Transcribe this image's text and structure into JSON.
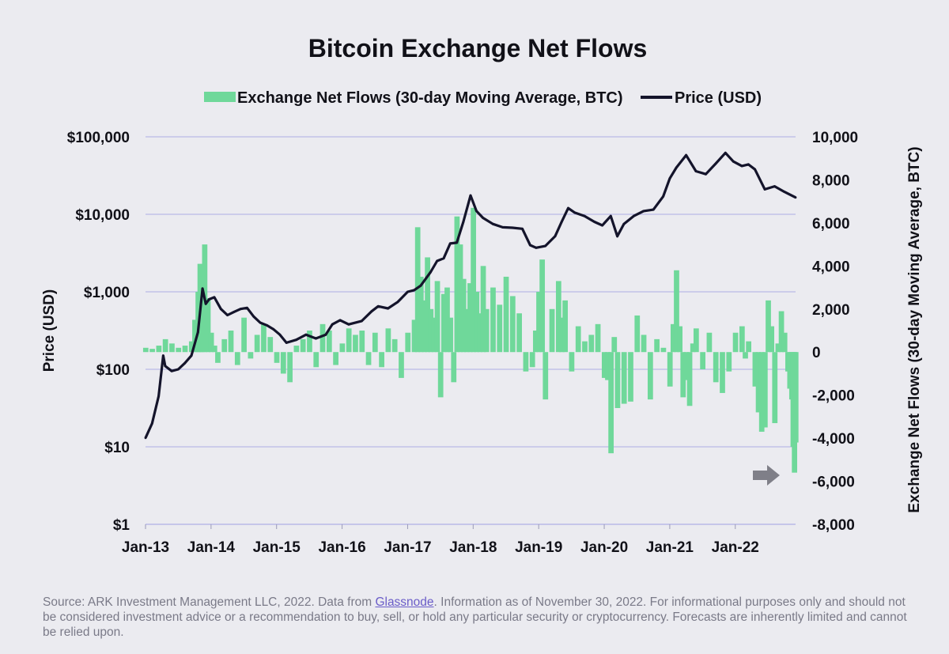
{
  "chart_data": {
    "type": "bar+line",
    "title": "Bitcoin Exchange Net Flows",
    "legend": [
      {
        "label": "Exchange Net Flows (30-day Moving Average, BTC)",
        "kind": "bar",
        "color": "#6fd89a"
      },
      {
        "label": "Price (USD)",
        "kind": "line",
        "color": "#14142b"
      }
    ],
    "legend_position": "top-center",
    "xlabel": "",
    "x_ticks": [
      "Jan-13",
      "Jan-14",
      "Jan-15",
      "Jan-16",
      "Jan-17",
      "Jan-18",
      "Jan-19",
      "Jan-20",
      "Jan-21",
      "Jan-22"
    ],
    "x_range": [
      2013.0,
      2022.92
    ],
    "left_axis": {
      "label": "Price (USD)",
      "scale": "log",
      "ylim": [
        1,
        100000
      ],
      "tick_values": [
        1,
        10,
        100,
        1000,
        10000,
        100000
      ],
      "tick_labels": [
        "$1",
        "$10",
        "$100",
        "$1,000",
        "$10,000",
        "$100,000"
      ]
    },
    "right_axis": {
      "label": "Exchange Net Flows (30-day Moving Average, BTC)",
      "scale": "linear",
      "ylim": [
        -8000,
        10000
      ],
      "tick_values": [
        -8000,
        -6000,
        -4000,
        -2000,
        0,
        2000,
        4000,
        6000,
        8000,
        10000
      ],
      "tick_labels": [
        "-8,000",
        "-6,000",
        "-4,000",
        "-2,000",
        "0",
        "2,000",
        "4,000",
        "6,000",
        "8,000",
        "10,000"
      ]
    },
    "price_series": {
      "name": "Price (USD)",
      "x": [
        2013.0,
        2013.1,
        2013.2,
        2013.27,
        2013.3,
        2013.4,
        2013.5,
        2013.6,
        2013.7,
        2013.8,
        2013.87,
        2013.92,
        2013.97,
        2014.05,
        2014.15,
        2014.25,
        2014.35,
        2014.45,
        2014.55,
        2014.65,
        2014.75,
        2014.85,
        2014.95,
        2015.05,
        2015.15,
        2015.3,
        2015.45,
        2015.6,
        2015.75,
        2015.85,
        2015.97,
        2016.1,
        2016.3,
        2016.45,
        2016.55,
        2016.7,
        2016.85,
        2017.0,
        2017.1,
        2017.2,
        2017.35,
        2017.45,
        2017.55,
        2017.65,
        2017.75,
        2017.85,
        2017.96,
        2018.05,
        2018.15,
        2018.3,
        2018.45,
        2018.6,
        2018.75,
        2018.87,
        2018.96,
        2019.1,
        2019.25,
        2019.35,
        2019.45,
        2019.55,
        2019.7,
        2019.85,
        2019.97,
        2020.1,
        2020.2,
        2020.3,
        2020.45,
        2020.6,
        2020.75,
        2020.9,
        2021.0,
        2021.1,
        2021.25,
        2021.4,
        2021.55,
        2021.7,
        2021.85,
        2021.97,
        2022.1,
        2022.2,
        2022.3,
        2022.45,
        2022.6,
        2022.75,
        2022.92
      ],
      "y": [
        13,
        20,
        45,
        150,
        110,
        95,
        100,
        120,
        150,
        300,
        1100,
        700,
        800,
        850,
        600,
        500,
        550,
        600,
        620,
        480,
        400,
        370,
        330,
        280,
        220,
        240,
        280,
        250,
        280,
        380,
        430,
        380,
        420,
        560,
        650,
        610,
        740,
        1000,
        1050,
        1200,
        1800,
        2500,
        2700,
        4200,
        4300,
        8000,
        17500,
        11000,
        9000,
        7500,
        6800,
        6700,
        6500,
        4000,
        3700,
        3900,
        5200,
        8000,
        12000,
        10500,
        9500,
        8000,
        7200,
        9500,
        5200,
        7500,
        9500,
        11000,
        11500,
        17000,
        29000,
        40000,
        58000,
        36000,
        33000,
        45000,
        62000,
        48000,
        42000,
        44000,
        38000,
        21000,
        23000,
        19500,
        16500
      ]
    },
    "flow_series": {
      "name": "Exchange Net Flows (30-day Moving Average, BTC)",
      "x": [
        2013.0,
        2013.1,
        2013.2,
        2013.3,
        2013.4,
        2013.5,
        2013.6,
        2013.7,
        2013.75,
        2013.8,
        2013.83,
        2013.86,
        2013.9,
        2013.95,
        2014.0,
        2014.05,
        2014.1,
        2014.2,
        2014.3,
        2014.4,
        2014.5,
        2014.6,
        2014.7,
        2014.8,
        2014.9,
        2015.0,
        2015.1,
        2015.2,
        2015.3,
        2015.4,
        2015.5,
        2015.6,
        2015.7,
        2015.8,
        2015.9,
        2016.0,
        2016.1,
        2016.2,
        2016.3,
        2016.4,
        2016.5,
        2016.6,
        2016.7,
        2016.8,
        2016.9,
        2017.0,
        2017.1,
        2017.15,
        2017.2,
        2017.25,
        2017.3,
        2017.35,
        2017.4,
        2017.45,
        2017.5,
        2017.55,
        2017.6,
        2017.65,
        2017.7,
        2017.75,
        2017.8,
        2017.85,
        2017.9,
        2017.95,
        2018.0,
        2018.05,
        2018.1,
        2018.15,
        2018.2,
        2018.3,
        2018.4,
        2018.5,
        2018.6,
        2018.7,
        2018.8,
        2018.9,
        2018.95,
        2019.0,
        2019.05,
        2019.1,
        2019.2,
        2019.3,
        2019.35,
        2019.4,
        2019.5,
        2019.6,
        2019.7,
        2019.8,
        2019.9,
        2020.0,
        2020.05,
        2020.1,
        2020.15,
        2020.2,
        2020.3,
        2020.4,
        2020.5,
        2020.6,
        2020.7,
        2020.8,
        2020.9,
        2021.0,
        2021.05,
        2021.1,
        2021.15,
        2021.2,
        2021.25,
        2021.3,
        2021.35,
        2021.4,
        2021.5,
        2021.6,
        2021.7,
        2021.8,
        2021.9,
        2022.0,
        2022.1,
        2022.15,
        2022.2,
        2022.3,
        2022.35,
        2022.4,
        2022.45,
        2022.5,
        2022.55,
        2022.6,
        2022.65,
        2022.7,
        2022.75,
        2022.8,
        2022.83,
        2022.86,
        2022.88,
        2022.9,
        2022.92
      ],
      "y": [
        200,
        150,
        300,
        600,
        400,
        200,
        300,
        500,
        1500,
        2800,
        4100,
        3500,
        5000,
        2500,
        900,
        300,
        -500,
        600,
        1000,
        -600,
        1600,
        -300,
        800,
        1300,
        700,
        -500,
        -1000,
        -1400,
        300,
        600,
        1000,
        -700,
        1300,
        1000,
        -600,
        400,
        1100,
        800,
        1000,
        -600,
        900,
        -700,
        1100,
        600,
        -1200,
        900,
        1500,
        5800,
        3500,
        2400,
        4400,
        2000,
        1600,
        3300,
        -2100,
        2700,
        3000,
        1600,
        -1400,
        6300,
        5000,
        3400,
        2000,
        3200,
        6700,
        2800,
        1800,
        4000,
        2000,
        3000,
        2200,
        3500,
        2600,
        1800,
        -900,
        -700,
        1000,
        2800,
        4300,
        -2200,
        2000,
        3300,
        1600,
        2400,
        -900,
        1200,
        500,
        800,
        1300,
        -1200,
        -1300,
        -4700,
        700,
        -2600,
        -2400,
        -2300,
        1700,
        800,
        -2200,
        600,
        200,
        -1600,
        1300,
        3800,
        1200,
        -2100,
        -1300,
        -2500,
        400,
        1100,
        -800,
        900,
        -1400,
        -1900,
        -900,
        900,
        1200,
        -300,
        500,
        -1600,
        -2800,
        -3700,
        -3500,
        2400,
        1200,
        -3300,
        400,
        1900,
        900,
        -900,
        -1700,
        -2200,
        -4400,
        -5600,
        -4200
      ]
    },
    "annotations": [
      {
        "kind": "arrow",
        "direction": "right",
        "points_to": "latest net flow low",
        "color": "#7f7f88"
      }
    ],
    "grid": "horizontal"
  },
  "footer": {
    "source_prefix": "Source: ARK Investment Management LLC, 2022. Data from ",
    "source_link": "Glassnode",
    "source_suffix": ". Information as of November 30, 2022. For informational purposes only and should not be considered investment advice or a recommendation to buy, sell, or hold any particular security or cryptocurrency. Forecasts are inherently limited and cannot be relied upon."
  }
}
